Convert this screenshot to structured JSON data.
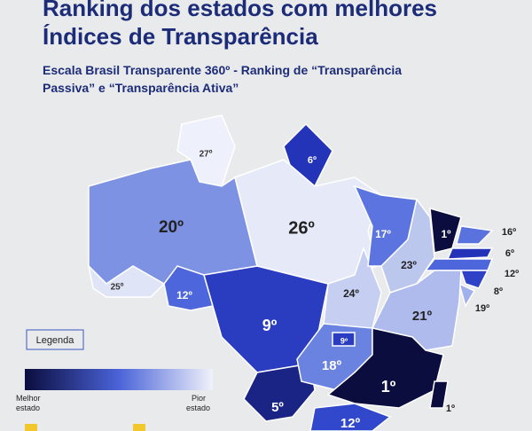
{
  "header": {
    "title_lines": [
      "Ranking dos estados com melhores",
      "Índices de Transparência"
    ],
    "subtitle_lines": [
      "Escala Brasil Transparente 360º - Ranking de “Transparência",
      "Passiva” e “Transparência Ativa”"
    ]
  },
  "map": {
    "regions": [
      {
        "label": "27º"
      },
      {
        "label": "6º"
      },
      {
        "label": "20º"
      },
      {
        "label": "26º"
      },
      {
        "label": "25º"
      },
      {
        "label": "12º"
      },
      {
        "label": "9º"
      },
      {
        "label": "5º"
      },
      {
        "label": "24º"
      },
      {
        "label": "17º"
      },
      {
        "label": "23º"
      },
      {
        "label": "1º"
      },
      {
        "label": "16º"
      },
      {
        "label": "6º"
      },
      {
        "label": "12º"
      },
      {
        "label": "8º"
      },
      {
        "label": "19º"
      },
      {
        "label": "21º"
      },
      {
        "label": "18º"
      },
      {
        "label": "9º"
      },
      {
        "label": "1º"
      },
      {
        "label": "1º"
      },
      {
        "label": "12º"
      }
    ]
  },
  "legend": {
    "title": "Legenda",
    "best": [
      "Melhor",
      "estado"
    ],
    "worst": [
      "Pior",
      "estado"
    ]
  }
}
